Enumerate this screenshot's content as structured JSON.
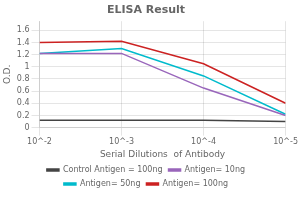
{
  "chart_data": {
    "type": "line",
    "title": "ELISA Result",
    "xlabel": "Serial Dilutions  of Antibody",
    "ylabel": "O.D.",
    "x": [
      0.01,
      0.001,
      0.0001,
      1e-05
    ],
    "series": [
      {
        "name": "Control Antigen = 100ng",
        "color": "#444444",
        "values": [
          0.12,
          0.12,
          0.12,
          0.1
        ]
      },
      {
        "name": "Antigen= 10ng",
        "color": "#9966bb",
        "values": [
          1.22,
          1.22,
          0.65,
          0.2
        ]
      },
      {
        "name": "Antigen= 50ng",
        "color": "#00bbcc",
        "values": [
          1.22,
          1.3,
          0.85,
          0.22
        ]
      },
      {
        "name": "Antigen= 100ng",
        "color": "#cc2222",
        "values": [
          1.4,
          1.42,
          1.05,
          0.4
        ]
      }
    ],
    "xlim": [
      0.01,
      1e-05
    ],
    "xticks": [
      {
        "value": 0.01,
        "label": "10^-2"
      },
      {
        "value": 0.001,
        "label": "10^-3"
      },
      {
        "value": 0.0001,
        "label": "10^-4"
      },
      {
        "value": 1e-05,
        "label": "10^-5"
      }
    ],
    "ylim": [
      0,
      1.75
    ],
    "yticks": [
      0,
      0.2,
      0.4,
      0.6,
      0.8,
      1.0,
      1.2,
      1.4,
      1.6
    ],
    "log": "x",
    "grid": true,
    "legend": "bottom"
  }
}
